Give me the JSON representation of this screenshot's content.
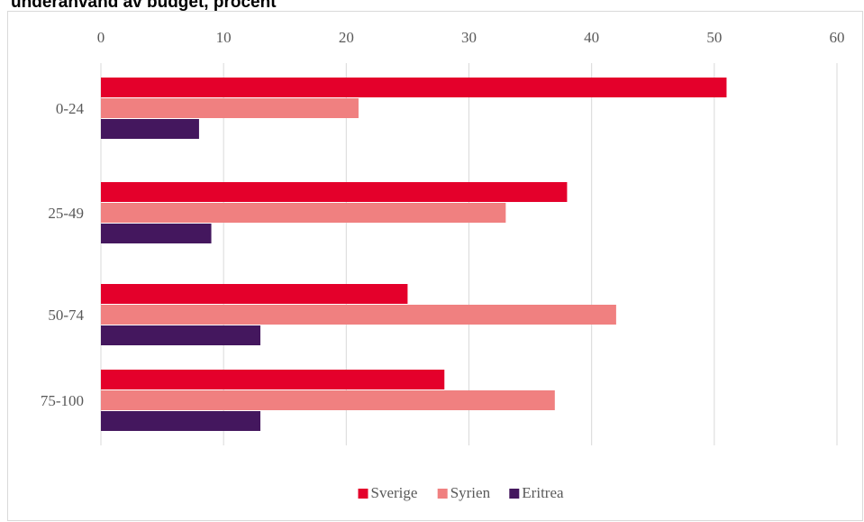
{
  "chart_data": {
    "type": "bar",
    "orientation": "horizontal",
    "title": "underanvänd av budget, procent",
    "categories": [
      "0-24",
      "25-49",
      "50-74",
      "75-100"
    ],
    "series": [
      {
        "name": "Sverige",
        "color": "#e4002b",
        "values": [
          51,
          38,
          25,
          28
        ]
      },
      {
        "name": "Syrien",
        "color": "#f08080",
        "values": [
          21,
          33,
          42,
          37
        ]
      },
      {
        "name": "Eritrea",
        "color": "#44175e",
        "values": [
          8,
          9,
          13,
          13
        ]
      }
    ],
    "xlim": [
      0,
      60
    ],
    "xticks": [
      "0",
      "10",
      "20",
      "30",
      "40",
      "50",
      "60"
    ],
    "grid": true,
    "legend_position": "bottom"
  }
}
